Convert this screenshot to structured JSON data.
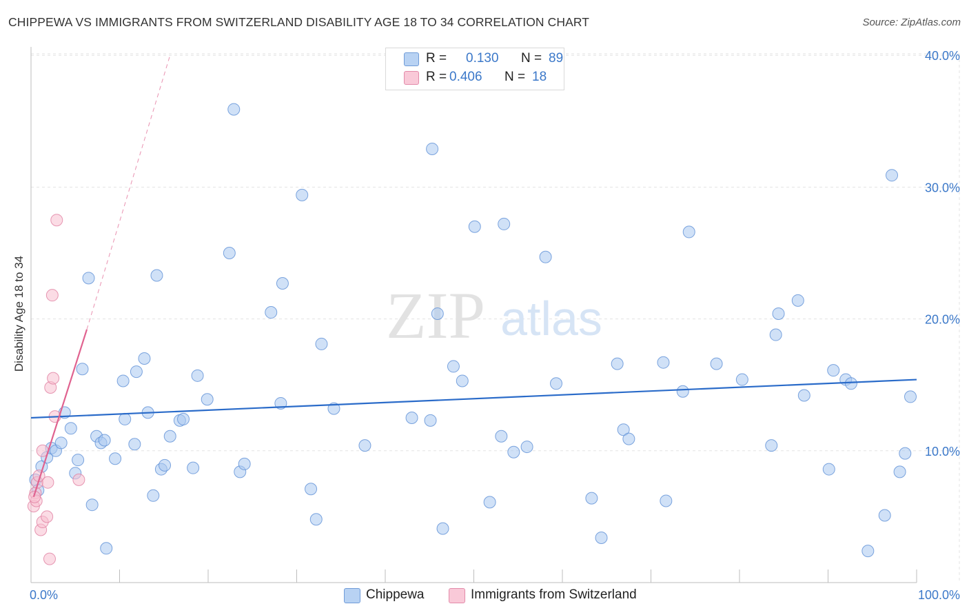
{
  "title": "CHIPPEWA VS IMMIGRANTS FROM SWITZERLAND DISABILITY AGE 18 TO 34 CORRELATION CHART",
  "source": "Source: ZipAtlas.com",
  "watermark": {
    "zip": "ZIP",
    "atlas": "atlas"
  },
  "legend_top": [
    {
      "r_label": "R =",
      "r_value": "0.130",
      "n_label": "N =",
      "n_value": "89"
    },
    {
      "r_label": "R =",
      "r_value": "0.406",
      "n_label": "N =",
      "n_value": "18"
    }
  ],
  "colors": {
    "chippewa_fill": "#a9c8f0",
    "chippewa_stroke": "#5d8fd6",
    "chippewa_line": "#2a6bc9",
    "swiss_fill": "#f7bfd0",
    "swiss_stroke": "#e07ea0",
    "swiss_line": "#e0628f",
    "accent_text": "#3b78c9"
  },
  "chart_data": {
    "type": "scatter",
    "title": "CHIPPEWA VS IMMIGRANTS FROM SWITZERLAND DISABILITY AGE 18 TO 34 CORRELATION CHART",
    "xlabel": "",
    "ylabel": "Disability Age 18 to 34",
    "xlim": [
      0,
      100
    ],
    "ylim": [
      0,
      40
    ],
    "x_tick_labels": [
      "0.0%",
      "100.0%"
    ],
    "y_ticks": [
      10,
      20,
      30,
      40
    ],
    "y_tick_labels": [
      "10.0%",
      "20.0%",
      "30.0%",
      "40.0%"
    ],
    "grid": true,
    "legend_position": "top-center",
    "series": [
      {
        "name": "Chippewa",
        "R": 0.13,
        "N": 89,
        "trend": {
          "x": [
            0,
            100
          ],
          "y": [
            12.5,
            15.4
          ]
        },
        "points": [
          [
            0.5,
            7.8
          ],
          [
            0.8,
            7.0
          ],
          [
            1.2,
            8.8
          ],
          [
            1.8,
            9.5
          ],
          [
            2.3,
            10.2
          ],
          [
            2.8,
            10.0
          ],
          [
            3.4,
            10.6
          ],
          [
            3.8,
            12.9
          ],
          [
            4.5,
            11.7
          ],
          [
            5.0,
            8.3
          ],
          [
            5.3,
            9.3
          ],
          [
            5.8,
            16.2
          ],
          [
            6.5,
            23.1
          ],
          [
            6.9,
            5.9
          ],
          [
            7.4,
            11.1
          ],
          [
            7.9,
            10.6
          ],
          [
            8.3,
            10.8
          ],
          [
            8.5,
            2.6
          ],
          [
            9.5,
            9.4
          ],
          [
            10.4,
            15.3
          ],
          [
            10.6,
            12.4
          ],
          [
            11.7,
            10.5
          ],
          [
            11.9,
            16.0
          ],
          [
            12.8,
            17.0
          ],
          [
            13.2,
            12.9
          ],
          [
            13.8,
            6.6
          ],
          [
            14.2,
            23.3
          ],
          [
            14.7,
            8.6
          ],
          [
            15.1,
            8.9
          ],
          [
            15.7,
            11.1
          ],
          [
            16.8,
            12.3
          ],
          [
            17.2,
            12.4
          ],
          [
            18.3,
            8.7
          ],
          [
            18.8,
            15.7
          ],
          [
            19.9,
            13.9
          ],
          [
            22.4,
            25.0
          ],
          [
            22.9,
            35.9
          ],
          [
            23.6,
            8.4
          ],
          [
            24.1,
            9.0
          ],
          [
            27.1,
            20.5
          ],
          [
            28.2,
            13.6
          ],
          [
            28.4,
            22.7
          ],
          [
            30.6,
            29.4
          ],
          [
            31.6,
            7.1
          ],
          [
            32.2,
            4.8
          ],
          [
            32.8,
            18.1
          ],
          [
            34.2,
            13.2
          ],
          [
            37.7,
            10.4
          ],
          [
            43.0,
            12.5
          ],
          [
            45.1,
            12.3
          ],
          [
            45.3,
            32.9
          ],
          [
            45.9,
            20.4
          ],
          [
            46.5,
            4.1
          ],
          [
            47.7,
            16.4
          ],
          [
            48.7,
            15.3
          ],
          [
            50.1,
            27.0
          ],
          [
            51.8,
            6.1
          ],
          [
            53.1,
            11.1
          ],
          [
            53.4,
            27.2
          ],
          [
            54.5,
            9.9
          ],
          [
            56.0,
            10.3
          ],
          [
            58.1,
            24.7
          ],
          [
            59.3,
            15.1
          ],
          [
            63.3,
            6.4
          ],
          [
            64.4,
            3.4
          ],
          [
            66.2,
            16.6
          ],
          [
            66.9,
            11.6
          ],
          [
            67.5,
            10.9
          ],
          [
            71.4,
            16.7
          ],
          [
            71.7,
            6.2
          ],
          [
            73.6,
            14.5
          ],
          [
            74.3,
            26.6
          ],
          [
            77.4,
            16.6
          ],
          [
            80.3,
            15.4
          ],
          [
            83.6,
            10.4
          ],
          [
            84.1,
            18.8
          ],
          [
            84.4,
            20.4
          ],
          [
            86.6,
            21.4
          ],
          [
            87.3,
            14.2
          ],
          [
            90.1,
            8.6
          ],
          [
            90.6,
            16.1
          ],
          [
            92.0,
            15.4
          ],
          [
            92.6,
            15.1
          ],
          [
            94.5,
            2.4
          ],
          [
            96.4,
            5.1
          ],
          [
            97.2,
            30.9
          ],
          [
            98.1,
            8.4
          ],
          [
            98.7,
            9.8
          ],
          [
            99.3,
            14.1
          ]
        ]
      },
      {
        "name": "Immigrants from Switzerland",
        "R": 0.406,
        "N": 18,
        "trend": {
          "x": [
            0.3,
            6.3
          ],
          "y": [
            6.5,
            19.2
          ],
          "dashed_extension_to": [
            15.7,
            40
          ]
        },
        "points": [
          [
            0.3,
            5.8
          ],
          [
            0.5,
            6.8
          ],
          [
            0.6,
            6.2
          ],
          [
            0.7,
            7.6
          ],
          [
            0.9,
            8.1
          ],
          [
            1.1,
            4.0
          ],
          [
            1.3,
            4.6
          ],
          [
            1.3,
            10.0
          ],
          [
            1.8,
            5.0
          ],
          [
            1.9,
            7.6
          ],
          [
            2.1,
            1.8
          ],
          [
            2.2,
            14.8
          ],
          [
            2.4,
            21.8
          ],
          [
            2.5,
            15.5
          ],
          [
            2.7,
            12.6
          ],
          [
            2.9,
            27.5
          ],
          [
            5.4,
            7.8
          ],
          [
            0.4,
            6.5
          ]
        ]
      }
    ]
  }
}
